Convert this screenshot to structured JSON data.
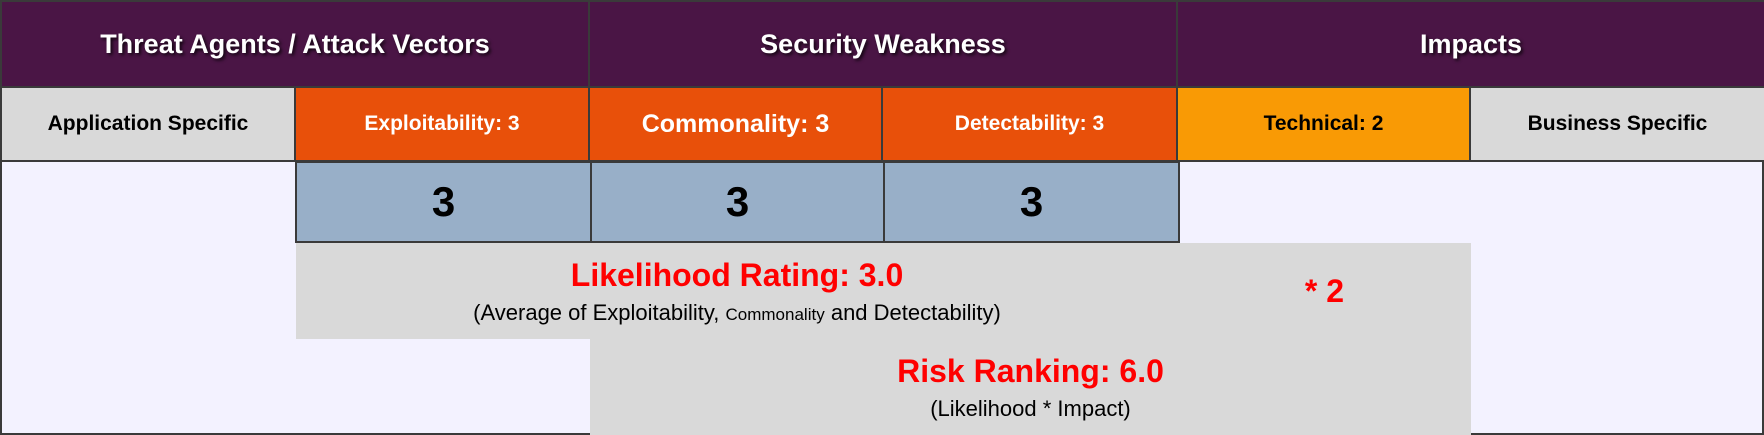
{
  "header": {
    "threat_agents": "Threat Agents / Attack Vectors",
    "security_weakness": "Security Weakness",
    "impacts": "Impacts"
  },
  "subheader": {
    "application_specific": "Application Specific",
    "exploitability": "Exploitability: 3",
    "commonality": "Commonality: 3",
    "detectability": "Detectability: 3",
    "technical": "Technical: 2",
    "business_specific": "Business Specific"
  },
  "scores": {
    "exploitability": "3",
    "commonality": "3",
    "detectability": "3"
  },
  "likelihood": {
    "title": "Likelihood Rating: 3.0",
    "note_part1": "(Average of Exploitability,",
    "note_part2": "Commonality",
    "note_part3": "and Detectability)"
  },
  "impact_multiplier": "* 2",
  "risk": {
    "title": "Risk Ranking: 6.0",
    "note": "(Likelihood * Impact)"
  },
  "colors": {
    "header_bg": "#4a1545",
    "orange": "#e8500a",
    "amber": "#f99a05",
    "score_bg": "#98afc8",
    "panel_gray": "#d9d9d9",
    "red_text": "#ff0000"
  }
}
